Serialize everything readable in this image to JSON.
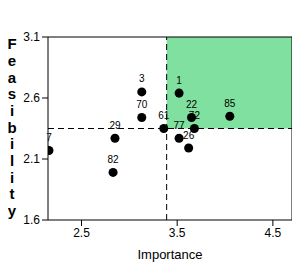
{
  "chart_data": {
    "type": "scatter",
    "xlabel": "Importance",
    "ylabel": "Feasibility",
    "labels": [
      "7",
      "29",
      "82",
      "3",
      "70",
      "61",
      "1",
      "22",
      "72",
      "77",
      "26",
      "85"
    ],
    "x": [
      2.16,
      2.85,
      2.83,
      3.13,
      3.13,
      3.36,
      3.52,
      3.65,
      3.68,
      3.52,
      3.62,
      4.05
    ],
    "values": [
      2.17,
      2.27,
      1.99,
      2.65,
      2.44,
      2.35,
      2.64,
      2.44,
      2.35,
      2.27,
      2.19,
      2.45
    ],
    "xlim": [
      2.15,
      4.7
    ],
    "ylim": [
      1.6,
      3.1
    ],
    "xticks": [
      2.5,
      3.5,
      4.5
    ],
    "yticks": [
      1.6,
      2.1,
      2.6,
      3.1
    ],
    "reference_lines": {
      "x": 3.39,
      "y": 2.35
    },
    "highlight_color": "#7fe0a0",
    "color": "#000000",
    "marker": "circle"
  }
}
